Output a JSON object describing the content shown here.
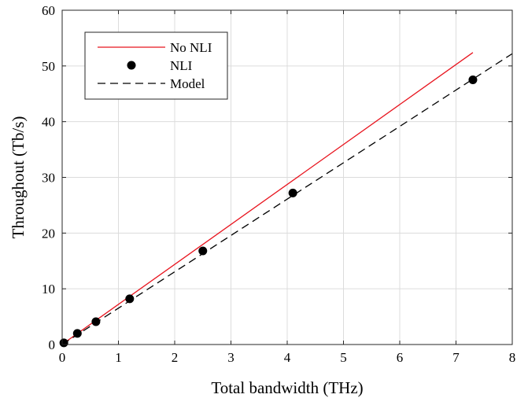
{
  "chart_data": {
    "type": "line",
    "title": "",
    "xlabel": "Total bandwidth (THz)",
    "ylabel": "Throughout (Tb/s)",
    "xlim": [
      0,
      8
    ],
    "ylim": [
      0,
      60
    ],
    "xticks": [
      0,
      1,
      2,
      3,
      4,
      5,
      6,
      7,
      8
    ],
    "yticks": [
      0,
      10,
      20,
      30,
      40,
      50,
      60
    ],
    "grid": true,
    "legend_position": "top-left",
    "series": [
      {
        "name": "No NLI",
        "style": "solid-line",
        "color": "#e8141e",
        "x": [
          0.03,
          7.3
        ],
        "y": [
          0.25,
          52.4
        ]
      },
      {
        "name": "NLI",
        "style": "markers",
        "color": "#000000",
        "x": [
          0.03,
          0.27,
          0.6,
          1.2,
          2.5,
          4.1,
          7.3
        ],
        "y": [
          0.3,
          2.0,
          4.1,
          8.2,
          16.8,
          27.2,
          47.5
        ]
      },
      {
        "name": "Model",
        "style": "dashed-line",
        "color": "#000000",
        "x": [
          0.0,
          8.0
        ],
        "y": [
          0.0,
          52.2
        ]
      }
    ]
  }
}
